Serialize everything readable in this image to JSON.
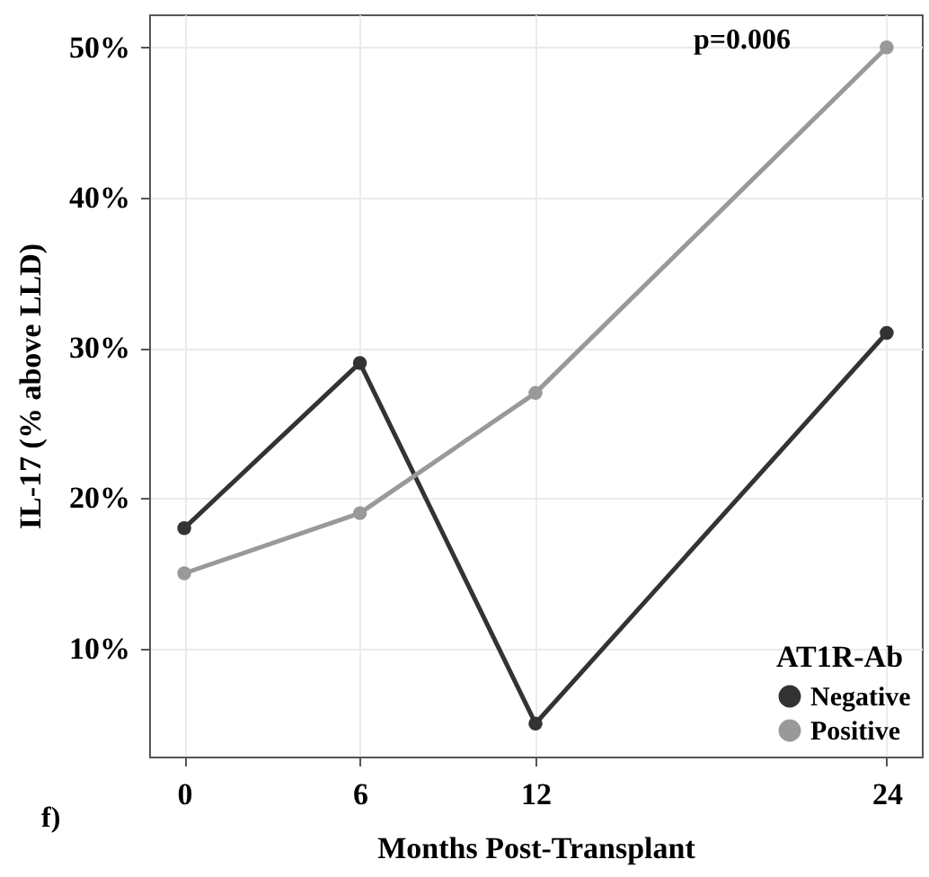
{
  "chart_data": {
    "type": "line",
    "xlabel": "Months Post-Transplant",
    "ylabel": "IL-17 (% above LLD)",
    "legend_title": "AT1R-Ab",
    "x": [
      0,
      6,
      12,
      24
    ],
    "series": [
      {
        "name": "Negative",
        "color": "#333333",
        "values": [
          18,
          29,
          5,
          31
        ]
      },
      {
        "name": "Positive",
        "color": "#999999",
        "values": [
          15,
          19,
          27,
          50
        ]
      }
    ],
    "xlim": [
      -1.2,
      25.2
    ],
    "xticks": [
      0,
      6,
      12,
      24
    ],
    "ylim": [
      2.8,
      52.2
    ],
    "yticks": [
      {
        "value": 10,
        "label": "10%"
      },
      {
        "value": 20,
        "label": "20%"
      },
      {
        "value": 30,
        "label": "30%"
      },
      {
        "value": 40,
        "label": "40%"
      },
      {
        "value": 50,
        "label": "50%"
      }
    ],
    "grid": true,
    "legend": "bottom right",
    "marker": "circle",
    "line_style": "solid",
    "annotations": [
      "p=0.006",
      "f)"
    ]
  }
}
